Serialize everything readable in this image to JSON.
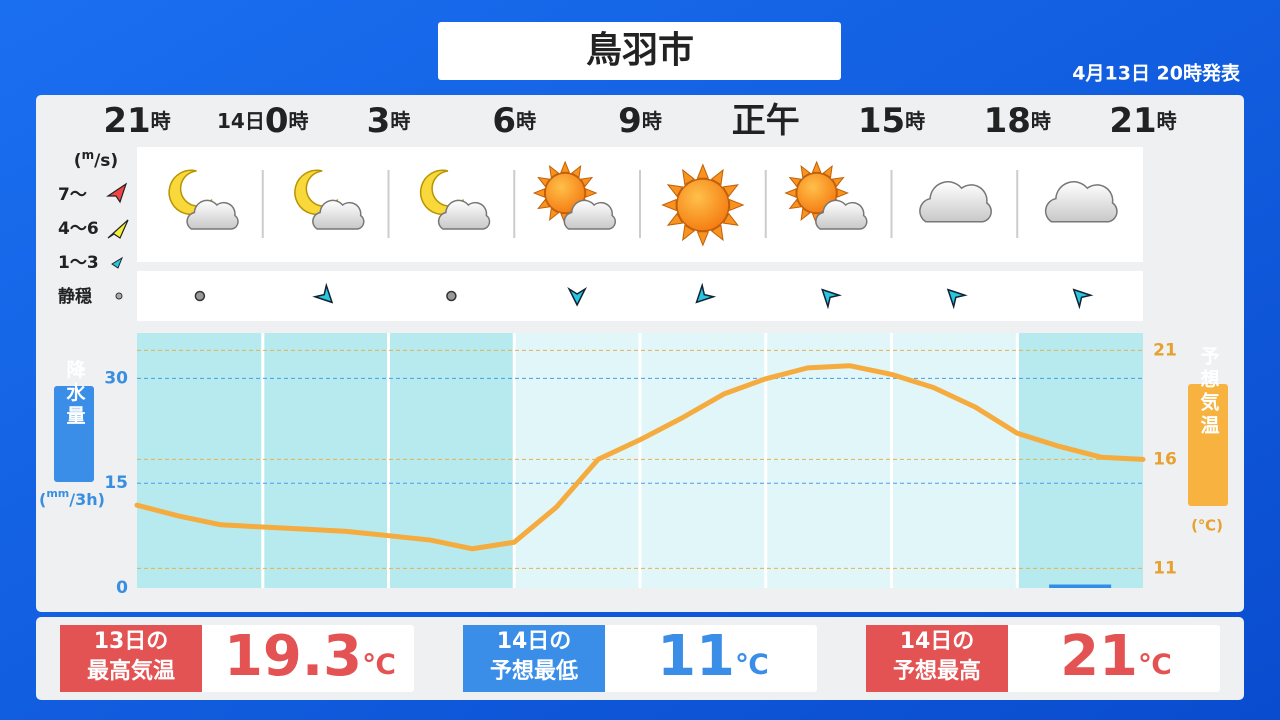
{
  "header": {
    "title": "鳥羽市",
    "issued": "4月13日 20時発表"
  },
  "hours": [
    {
      "hour": "21",
      "unit": "時"
    },
    {
      "day": "14日",
      "hour": "0",
      "unit": "時"
    },
    {
      "hour": "3",
      "unit": "時"
    },
    {
      "hour": "6",
      "unit": "時"
    },
    {
      "hour": "9",
      "unit": "時"
    },
    {
      "hour": "正午"
    },
    {
      "hour": "15",
      "unit": "時"
    },
    {
      "hour": "18",
      "unit": "時"
    },
    {
      "hour": "21",
      "unit": "時"
    }
  ],
  "weather": [
    "moon-cloud",
    "moon-cloud",
    "moon-cloud",
    "sun-cloud",
    "sun",
    "sun-cloud",
    "cloud",
    "cloud"
  ],
  "wind_legend": {
    "unit": [
      "(",
      "m",
      "/s)"
    ],
    "levels": [
      "7〜",
      "4〜6",
      "1〜3",
      "静穏"
    ]
  },
  "wind_directions": [
    null,
    135,
    null,
    180,
    225,
    315,
    315,
    315
  ],
  "chart_data": {
    "type": "line",
    "left_axis_label": "降水量",
    "left_axis_unit": [
      "(",
      "mm",
      "/3h)"
    ],
    "right_axis_label": "予想気温",
    "right_axis_unit": "(℃)",
    "ylim": [
      0,
      36.5
    ],
    "yticks": [
      0,
      15,
      30
    ],
    "y2lim": [
      10.1,
      21.8
    ],
    "y2ticks": [
      11,
      16,
      21
    ],
    "shaded": [
      true,
      true,
      true,
      false,
      false,
      false,
      false,
      true
    ],
    "precipitation": {
      "color": "#2f8fe8",
      "values": [
        0,
        0,
        0,
        0,
        0,
        0,
        0,
        0.5
      ]
    },
    "temperature": {
      "color": "#f5ab3e",
      "axis": "y2",
      "values": [
        13.9,
        13.4,
        13.0,
        12.9,
        12.8,
        12.7,
        12.5,
        12.3,
        11.9,
        12.2,
        13.8,
        16.0,
        16.9,
        17.9,
        19.0,
        19.7,
        20.2,
        20.3,
        19.9,
        19.3,
        18.4,
        17.2,
        16.6,
        16.1,
        16.0
      ]
    }
  },
  "summary": [
    {
      "label": [
        "13日の",
        "最高気温"
      ],
      "value": 19.3,
      "unit": "℃",
      "color": "#e45353"
    },
    {
      "label": [
        "14日の",
        "予想最低"
      ],
      "value": 11,
      "unit": "℃",
      "color": "#3a8ee8"
    },
    {
      "label": [
        "14日の",
        "予想最高"
      ],
      "value": 21,
      "unit": "℃",
      "color": "#e45353"
    }
  ]
}
